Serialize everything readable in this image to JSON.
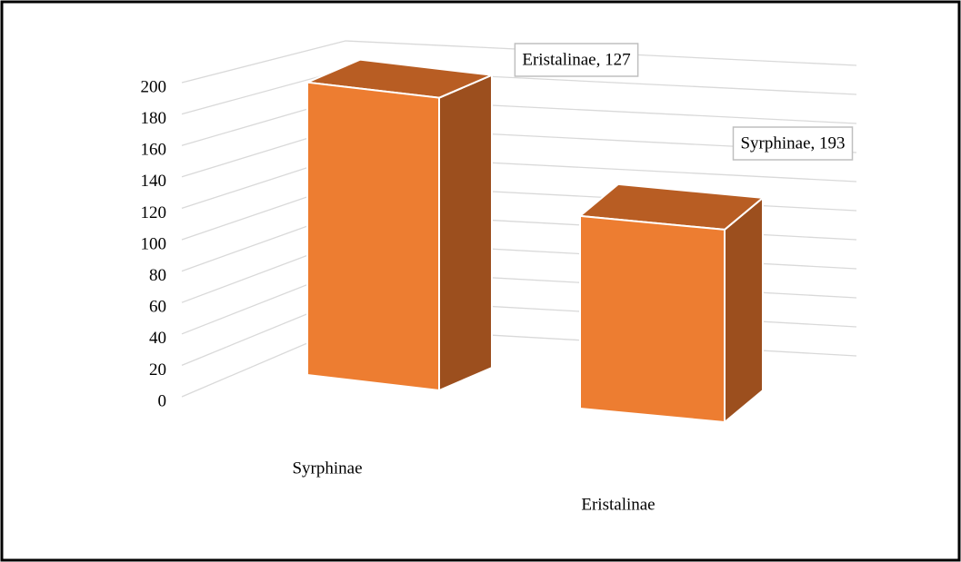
{
  "chart_data": {
    "type": "bar3d",
    "categories": [
      "Syrphinae",
      "Eristalinae"
    ],
    "values": [
      193,
      127
    ],
    "value_labels": [
      "Syrphinae, 193",
      "Eristalinae, 127"
    ],
    "color": "#ed7d31",
    "ylim": [
      0,
      200
    ],
    "yticks": [
      0,
      20,
      40,
      60,
      80,
      100,
      120,
      140,
      160,
      180,
      200
    ],
    "grid": true
  }
}
